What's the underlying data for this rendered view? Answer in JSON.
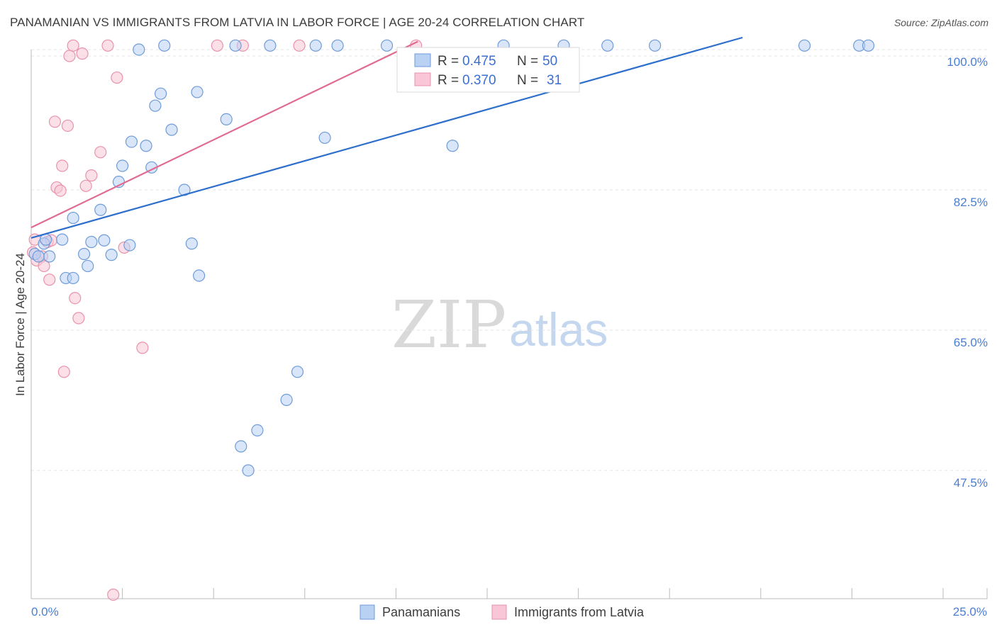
{
  "title": "PANAMANIAN VS IMMIGRANTS FROM LATVIA IN LABOR FORCE | AGE 20-24 CORRELATION CHART",
  "source": "Source: ZipAtlas.com",
  "watermark": {
    "zip": "ZIP",
    "atlas": "atlas"
  },
  "legend_stats": [
    {
      "r_label": "R =",
      "r_value": "0.475",
      "n_label": "N =",
      "n_value": "50"
    },
    {
      "r_label": "R =",
      "r_value": "0.370",
      "n_label": "N =",
      "n_value": "31"
    }
  ],
  "chart_data": {
    "type": "scatter",
    "title": "PANAMANIAN VS IMMIGRANTS FROM LATVIA IN LABOR FORCE | AGE 20-24 CORRELATION CHART",
    "xlabel": "",
    "ylabel": "In Labor Force | Age 20-24",
    "xlim": [
      0,
      25
    ],
    "ylim": [
      31.5,
      101.5
    ],
    "x_tick_labels": [
      "0.0%",
      "25.0%"
    ],
    "y_ticks": [
      47.5,
      65.0,
      82.5,
      100.0
    ],
    "y_tick_labels": [
      "47.5%",
      "65.0%",
      "82.5%",
      "100.0%"
    ],
    "grid": true,
    "legend": "bottom-center",
    "colors": {
      "panamanians_fill": "#b9d2f4",
      "panamanians_stroke": "#6e9bd8",
      "panamanians_line": "#2e6fcc",
      "latvia_fill": "#f8c6d6",
      "latvia_stroke": "#e892ac",
      "latvia_line": "#e06a92",
      "axis_text": "#4a7ed2"
    },
    "series": [
      {
        "name": "Panamanians",
        "R": 0.475,
        "N": 50,
        "trend": {
          "x": [
            0.0,
            19.5
          ],
          "y": [
            76.5,
            101.5
          ]
        },
        "points": [
          [
            0.1,
            74.5
          ],
          [
            0.2,
            74.2
          ],
          [
            0.35,
            75.8
          ],
          [
            0.4,
            76.3
          ],
          [
            0.5,
            74.2
          ],
          [
            0.85,
            76.3
          ],
          [
            0.95,
            71.5
          ],
          [
            1.15,
            71.5
          ],
          [
            1.15,
            79.0
          ],
          [
            1.45,
            74.5
          ],
          [
            1.55,
            73.0
          ],
          [
            1.65,
            76.0
          ],
          [
            1.9,
            80.0
          ],
          [
            2.0,
            76.2
          ],
          [
            2.2,
            74.4
          ],
          [
            2.4,
            83.5
          ],
          [
            2.5,
            85.5
          ],
          [
            2.7,
            75.6
          ],
          [
            2.75,
            88.5
          ],
          [
            2.95,
            100.0
          ],
          [
            3.15,
            88.0
          ],
          [
            3.3,
            85.3
          ],
          [
            3.4,
            93.0
          ],
          [
            3.55,
            94.5
          ],
          [
            3.65,
            100.5
          ],
          [
            3.85,
            90.0
          ],
          [
            4.2,
            82.5
          ],
          [
            4.4,
            75.8
          ],
          [
            4.55,
            94.7
          ],
          [
            4.6,
            71.8
          ],
          [
            5.35,
            91.3
          ],
          [
            5.6,
            100.5
          ],
          [
            5.75,
            50.5
          ],
          [
            5.95,
            47.5
          ],
          [
            6.2,
            52.5
          ],
          [
            6.55,
            100.5
          ],
          [
            7.0,
            56.3
          ],
          [
            7.3,
            59.8
          ],
          [
            7.8,
            100.5
          ],
          [
            8.05,
            89.0
          ],
          [
            8.4,
            100.5
          ],
          [
            9.75,
            100.5
          ],
          [
            11.55,
            88.0
          ],
          [
            12.95,
            100.5
          ],
          [
            14.6,
            100.5
          ],
          [
            15.8,
            100.5
          ],
          [
            17.1,
            100.5
          ],
          [
            21.2,
            100.5
          ],
          [
            22.7,
            100.5
          ],
          [
            22.95,
            100.5
          ]
        ]
      },
      {
        "name": "Immigrants from Latvia",
        "R": 0.37,
        "N": 31,
        "trend": {
          "x": [
            0.0,
            10.6
          ],
          "y": [
            77.8,
            101.0
          ]
        },
        "points": [
          [
            0.05,
            74.7
          ],
          [
            0.1,
            76.3
          ],
          [
            0.15,
            73.7
          ],
          [
            0.3,
            74.2
          ],
          [
            0.35,
            73.0
          ],
          [
            0.45,
            76.0
          ],
          [
            0.5,
            71.3
          ],
          [
            0.55,
            76.2
          ],
          [
            0.65,
            91.0
          ],
          [
            0.7,
            82.8
          ],
          [
            0.8,
            82.4
          ],
          [
            0.85,
            85.5
          ],
          [
            0.9,
            59.8
          ],
          [
            1.0,
            90.5
          ],
          [
            1.05,
            99.2
          ],
          [
            1.15,
            100.5
          ],
          [
            1.2,
            69.0
          ],
          [
            1.3,
            66.5
          ],
          [
            1.4,
            99.5
          ],
          [
            1.5,
            83.0
          ],
          [
            1.65,
            84.3
          ],
          [
            1.9,
            87.2
          ],
          [
            2.1,
            100.5
          ],
          [
            2.25,
            32.0
          ],
          [
            2.35,
            96.5
          ],
          [
            2.55,
            75.3
          ],
          [
            3.05,
            62.8
          ],
          [
            5.1,
            100.5
          ],
          [
            5.8,
            100.5
          ],
          [
            7.35,
            100.5
          ],
          [
            10.55,
            100.5
          ]
        ]
      }
    ]
  },
  "bottom_legend": [
    "Panamanians",
    "Immigrants from Latvia"
  ]
}
